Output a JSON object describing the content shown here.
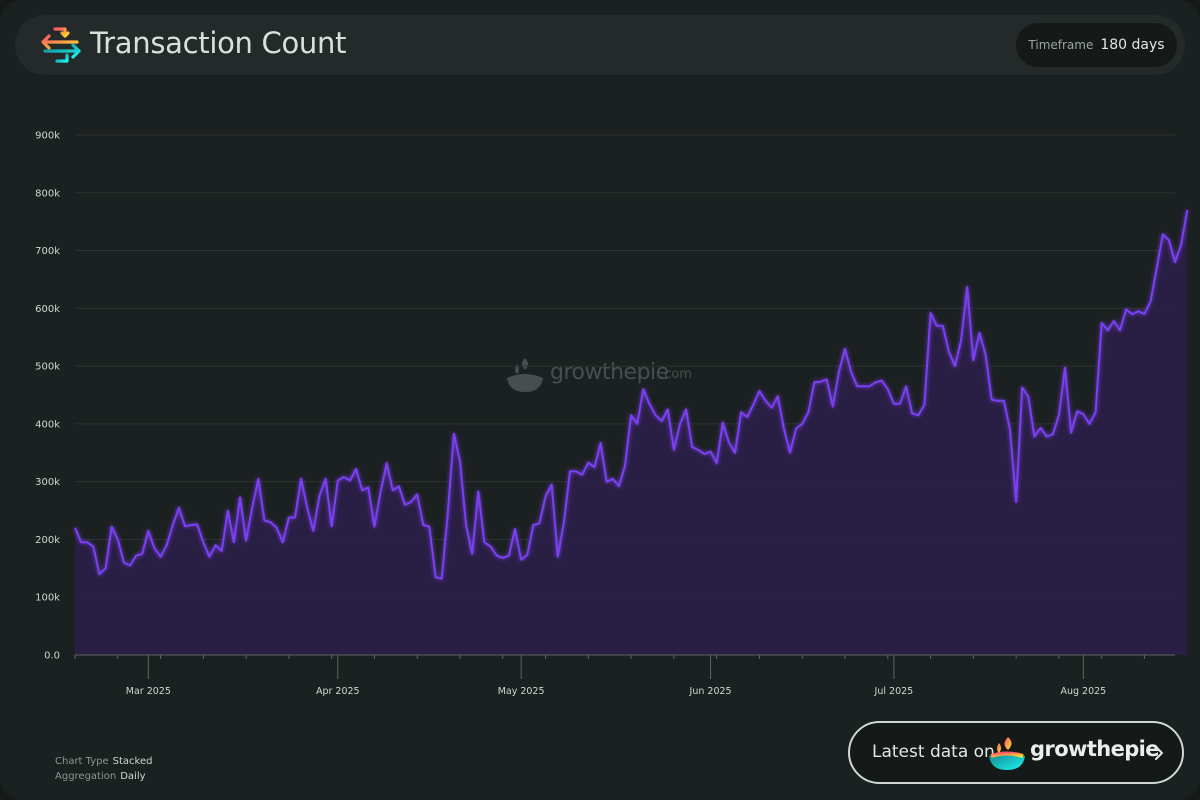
{
  "header": {
    "title": "Transaction Count",
    "timeframe_label": "Timeframe",
    "timeframe_value": "180 days"
  },
  "watermark": {
    "text": "growthepie",
    "suffix": ".com"
  },
  "footer": {
    "chart_type_label": "Chart Type",
    "chart_type_value": "Stacked",
    "aggregation_label": "Aggregation",
    "aggregation_value": "Daily"
  },
  "cta": {
    "text": "Latest data on",
    "brand": "growthepie"
  },
  "colors": {
    "accent": "#7a3ff2",
    "fill": "#2a1f47",
    "grid": "#2c3231",
    "background": "#1b2020"
  },
  "icons": [
    "arrows-exchange-icon",
    "growthepie-logo-icon",
    "chevron-right-icon"
  ],
  "chart_data": {
    "type": "area",
    "title": "Transaction Count",
    "xlabel": "",
    "ylabel": "",
    "ylim": [
      0,
      900000
    ],
    "yticks": [
      0,
      100000,
      200000,
      300000,
      400000,
      500000,
      600000,
      700000,
      800000,
      900000
    ],
    "ytick_labels": [
      "0.0",
      "100k",
      "200k",
      "300k",
      "400k",
      "500k",
      "600k",
      "700k",
      "800k",
      "900k"
    ],
    "xlim": [
      "2025-02-17",
      "2025-08-16"
    ],
    "xtick_labels": [
      {
        "date": "2025-03-01",
        "label": "Mar 2025"
      },
      {
        "date": "2025-04-01",
        "label": "Apr 2025"
      },
      {
        "date": "2025-05-01",
        "label": "May 2025"
      },
      {
        "date": "2025-06-01",
        "label": "Jun 2025"
      },
      {
        "date": "2025-07-01",
        "label": "Jul 2025"
      },
      {
        "date": "2025-08-01",
        "label": "Aug 2025"
      }
    ],
    "grid": true,
    "series": [
      {
        "start_date": "2025-02-17",
        "frequency": "daily",
        "values": [
          220000,
          195000,
          195000,
          188000,
          140000,
          150000,
          222000,
          200000,
          160000,
          155000,
          172000,
          175000,
          215000,
          185000,
          170000,
          190000,
          225000,
          255000,
          223000,
          225000,
          226000,
          195000,
          170000,
          190000,
          180000,
          250000,
          195000,
          273000,
          198000,
          255000,
          305000,
          233000,
          230000,
          220000,
          195000,
          238000,
          238000,
          305000,
          255000,
          215000,
          275000,
          305000,
          223000,
          302000,
          308000,
          302000,
          322000,
          285000,
          290000,
          222000,
          283000,
          332000,
          285000,
          292000,
          260000,
          265000,
          278000,
          225000,
          222000,
          135000,
          132000,
          245000,
          383000,
          335000,
          225000,
          175000,
          283000,
          195000,
          188000,
          172000,
          168000,
          172000,
          218000,
          165000,
          173000,
          225000,
          228000,
          275000,
          295000,
          170000,
          230000,
          318000,
          318000,
          312000,
          333000,
          325000,
          367000,
          300000,
          305000,
          292000,
          328000,
          415000,
          400000,
          460000,
          435000,
          415000,
          405000,
          425000,
          355000,
          400000,
          425000,
          360000,
          355000,
          348000,
          352000,
          332000,
          402000,
          368000,
          350000,
          420000,
          412000,
          433000,
          457000,
          440000,
          428000,
          448000,
          392000,
          350000,
          392000,
          400000,
          420000,
          472000,
          473000,
          477000,
          430000,
          490000,
          530000,
          490000,
          465000,
          465000,
          465000,
          472000,
          475000,
          460000,
          435000,
          435000,
          465000,
          418000,
          415000,
          433000,
          592000,
          570000,
          570000,
          525000,
          500000,
          545000,
          637000,
          510000,
          558000,
          520000,
          442000,
          440000,
          440000,
          390000,
          265000,
          463000,
          447000,
          378000,
          393000,
          378000,
          382000,
          415000,
          497000,
          385000,
          422000,
          417000,
          400000,
          420000,
          575000,
          562000,
          578000,
          562000,
          598000,
          590000,
          595000,
          590000,
          612000,
          670000,
          728000,
          718000,
          680000,
          710000,
          770000
        ]
      }
    ],
    "legend": "none"
  }
}
